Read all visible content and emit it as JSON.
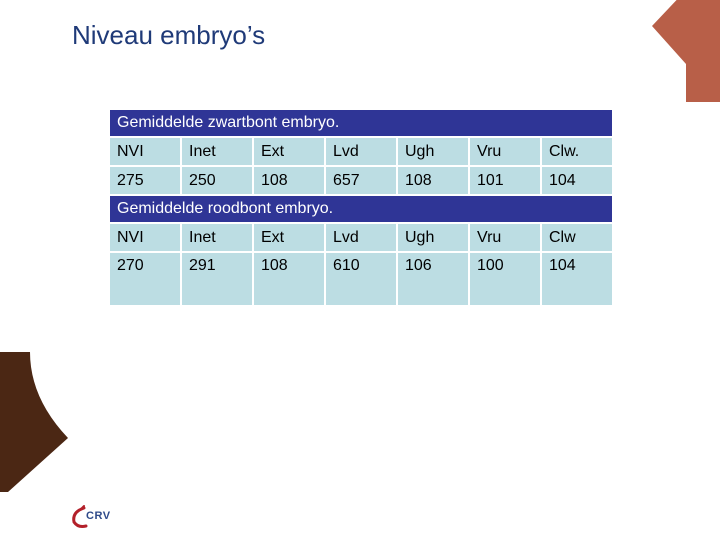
{
  "page": {
    "title": "Niveau embryo’s"
  },
  "tables": [
    {
      "caption": "Gemiddelde zwartbont embryo.",
      "headers": [
        "NVI",
        "Inet",
        "Ext",
        "Lvd",
        "Ugh",
        "Vru",
        "Clw."
      ],
      "values": [
        "275",
        "250",
        "108",
        "657",
        "108",
        "101",
        "104"
      ]
    },
    {
      "caption": "Gemiddelde roodbont embryo.",
      "headers": [
        "NVI",
        "Inet",
        "Ext",
        "Lvd",
        "Ugh",
        "Vru",
        "Clw"
      ],
      "values": [
        "270",
        "291",
        "108",
        "610",
        "106",
        "100",
        "104"
      ]
    }
  ],
  "logo": {
    "text": "CRV"
  },
  "colors": {
    "title": "#1f3a78",
    "header_bar": "#2f3596",
    "cell": "#bcdde3",
    "corner_top": "#b85f48",
    "corner_left": "#4b2714"
  }
}
